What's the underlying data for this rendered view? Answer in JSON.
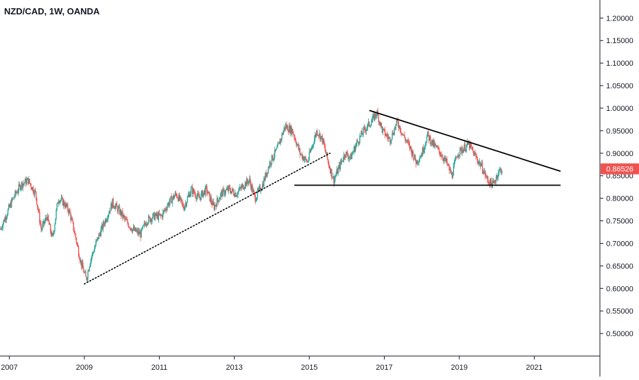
{
  "header": {
    "title": "NZD/CAD, 1W, OANDA"
  },
  "colors": {
    "up": "#26a69a",
    "down": "#ef5350",
    "price_tag": "#ef5350",
    "axis_line": "#131722",
    "trendline": "#000000"
  },
  "chart_data": {
    "type": "candlestick",
    "title": "NZD/CAD, 1W, OANDA",
    "xlabel": "",
    "ylabel": "",
    "x_range": [
      2006.75,
      2022.75
    ],
    "ylim": [
      0.45,
      1.24
    ],
    "x_ticks": [
      2007,
      2009,
      2011,
      2013,
      2015,
      2017,
      2019,
      2021
    ],
    "x_tick_labels": [
      "2007",
      "2009",
      "2011",
      "2013",
      "2015",
      "2017",
      "2019",
      "2021"
    ],
    "y_ticks": [
      1.2,
      1.15,
      1.1,
      1.05,
      1.0,
      0.95,
      0.9,
      0.85,
      0.8,
      0.75,
      0.7,
      0.65,
      0.6,
      0.55,
      0.5
    ],
    "y_tick_labels": [
      "1.20000",
      "1.15000",
      "1.10000",
      "1.05000",
      "1.00000",
      "0.95000",
      "0.90000",
      "0.85000",
      "0.80000",
      "0.75000",
      "0.70000",
      "0.65000",
      "0.60000",
      "0.55000",
      "0.50000"
    ],
    "last_price": 0.86526,
    "last_price_label": "0.86526",
    "grid": false,
    "price_path": [
      [
        2006.75,
        0.73
      ],
      [
        2006.9,
        0.76
      ],
      [
        2007.1,
        0.8
      ],
      [
        2007.3,
        0.83
      ],
      [
        2007.5,
        0.84
      ],
      [
        2007.7,
        0.81
      ],
      [
        2007.85,
        0.73
      ],
      [
        2008.0,
        0.76
      ],
      [
        2008.15,
        0.71
      ],
      [
        2008.3,
        0.8
      ],
      [
        2008.45,
        0.79
      ],
      [
        2008.6,
        0.77
      ],
      [
        2008.75,
        0.72
      ],
      [
        2008.9,
        0.66
      ],
      [
        2009.05,
        0.62
      ],
      [
        2009.15,
        0.66
      ],
      [
        2009.35,
        0.71
      ],
      [
        2009.55,
        0.75
      ],
      [
        2009.75,
        0.79
      ],
      [
        2009.95,
        0.77
      ],
      [
        2010.1,
        0.75
      ],
      [
        2010.3,
        0.73
      ],
      [
        2010.5,
        0.72
      ],
      [
        2010.65,
        0.75
      ],
      [
        2010.85,
        0.76
      ],
      [
        2011.05,
        0.76
      ],
      [
        2011.25,
        0.79
      ],
      [
        2011.45,
        0.81
      ],
      [
        2011.65,
        0.78
      ],
      [
        2011.85,
        0.82
      ],
      [
        2012.05,
        0.8
      ],
      [
        2012.25,
        0.82
      ],
      [
        2012.45,
        0.78
      ],
      [
        2012.65,
        0.81
      ],
      [
        2012.85,
        0.82
      ],
      [
        2013.05,
        0.81
      ],
      [
        2013.25,
        0.83
      ],
      [
        2013.4,
        0.84
      ],
      [
        2013.55,
        0.8
      ],
      [
        2013.75,
        0.83
      ],
      [
        2013.95,
        0.88
      ],
      [
        2014.15,
        0.91
      ],
      [
        2014.35,
        0.96
      ],
      [
        2014.55,
        0.95
      ],
      [
        2014.75,
        0.9
      ],
      [
        2014.95,
        0.88
      ],
      [
        2015.05,
        0.91
      ],
      [
        2015.2,
        0.95
      ],
      [
        2015.35,
        0.93
      ],
      [
        2015.5,
        0.88
      ],
      [
        2015.65,
        0.84
      ],
      [
        2015.8,
        0.87
      ],
      [
        2015.95,
        0.9
      ],
      [
        2016.1,
        0.89
      ],
      [
        2016.25,
        0.92
      ],
      [
        2016.45,
        0.95
      ],
      [
        2016.65,
        0.97
      ],
      [
        2016.8,
        0.99
      ],
      [
        2016.95,
        0.95
      ],
      [
        2017.15,
        0.93
      ],
      [
        2017.35,
        0.97
      ],
      [
        2017.5,
        0.94
      ],
      [
        2017.7,
        0.91
      ],
      [
        2017.85,
        0.88
      ],
      [
        2018.0,
        0.9
      ],
      [
        2018.15,
        0.94
      ],
      [
        2018.3,
        0.92
      ],
      [
        2018.5,
        0.9
      ],
      [
        2018.65,
        0.88
      ],
      [
        2018.8,
        0.85
      ],
      [
        2018.95,
        0.9
      ],
      [
        2019.1,
        0.91
      ],
      [
        2019.25,
        0.92
      ],
      [
        2019.45,
        0.89
      ],
      [
        2019.6,
        0.87
      ],
      [
        2019.75,
        0.84
      ],
      [
        2019.9,
        0.83
      ],
      [
        2020.05,
        0.86
      ],
      [
        2020.15,
        0.865
      ]
    ],
    "trendlines": [
      {
        "style": "dotted",
        "points": [
          [
            2009.0,
            0.61
          ],
          [
            2015.55,
            0.9
          ]
        ]
      },
      {
        "style": "solid",
        "points": [
          [
            2014.6,
            0.829
          ],
          [
            2021.7,
            0.829
          ]
        ]
      },
      {
        "style": "solid",
        "points": [
          [
            2016.6,
            0.995
          ],
          [
            2021.7,
            0.86
          ]
        ]
      }
    ]
  }
}
